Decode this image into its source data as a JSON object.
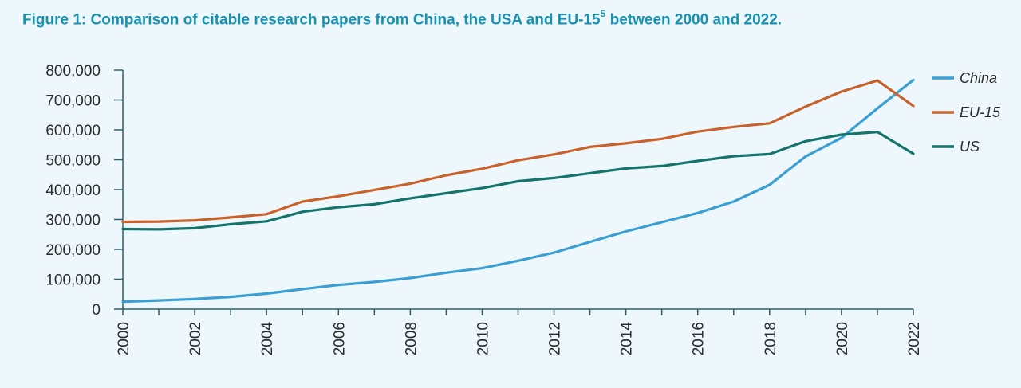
{
  "title": {
    "prefix": "Figure 1: Comparison of citable research papers from China, the USA and EU-15",
    "superscript": "5",
    "suffix": " between 2000 and 2022."
  },
  "chart_data": {
    "type": "line",
    "title": "Figure 1: Comparison of citable research papers from China, the USA and EU-15⁵ between 2000 and 2022.",
    "xlabel": "",
    "ylabel": "",
    "x": [
      2000,
      2001,
      2002,
      2003,
      2004,
      2005,
      2006,
      2007,
      2008,
      2009,
      2010,
      2011,
      2012,
      2013,
      2014,
      2015,
      2016,
      2017,
      2018,
      2019,
      2020,
      2021,
      2022
    ],
    "xticks": [
      "2000",
      "2002",
      "2004",
      "2006",
      "2008",
      "2010",
      "2012",
      "2014",
      "2016",
      "2018",
      "2020",
      "2022"
    ],
    "yticks": [
      "0",
      "100,000",
      "200,000",
      "300,000",
      "400,000",
      "500,000",
      "600,000",
      "700,000",
      "800,000"
    ],
    "ylim": [
      0,
      800000
    ],
    "grid": false,
    "legend_position": "right",
    "series": [
      {
        "name": "China",
        "color": "#3a9fd3",
        "values": [
          25000,
          29000,
          34000,
          41000,
          52000,
          67000,
          81000,
          91000,
          104000,
          122000,
          137000,
          162000,
          189000,
          225000,
          260000,
          291000,
          322000,
          360000,
          416000,
          511000,
          573000,
          672000,
          767000
        ]
      },
      {
        "name": "EU-15",
        "color": "#c8622a",
        "values": [
          292000,
          293000,
          297000,
          307000,
          318000,
          360000,
          378000,
          399000,
          420000,
          448000,
          470000,
          498000,
          518000,
          543000,
          555000,
          570000,
          594000,
          610000,
          622000,
          678000,
          728000,
          765000,
          680000
        ]
      },
      {
        "name": "US",
        "color": "#14736b",
        "values": [
          268000,
          267000,
          271000,
          284000,
          294000,
          326000,
          341000,
          351000,
          371000,
          388000,
          405000,
          428000,
          439000,
          455000,
          471000,
          479000,
          496000,
          512000,
          519000,
          562000,
          584000,
          593000,
          520000
        ]
      }
    ]
  }
}
